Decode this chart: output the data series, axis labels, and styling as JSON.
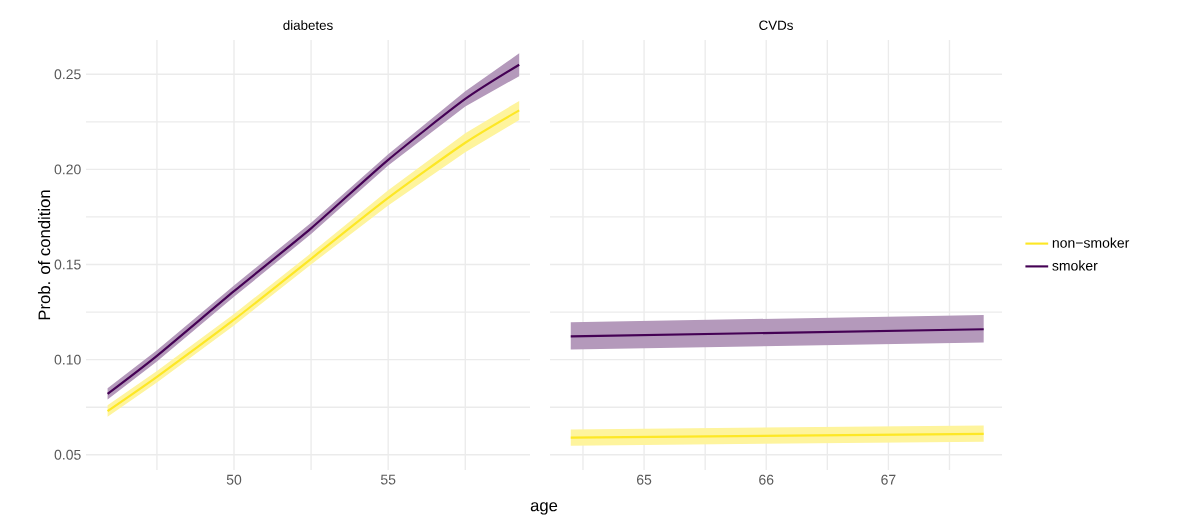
{
  "chart_data": [
    {
      "type": "line",
      "title": "diabetes",
      "ylabel": "Prob. of condition",
      "xlabel": "age",
      "grid": true,
      "line_style": "solid",
      "tick_labels": true,
      "xlim": [
        45.2,
        59.6
      ],
      "xticks": [
        {
          "value": 47.5,
          "label": null
        },
        50,
        {
          "value": 52.5,
          "label": null
        },
        55,
        {
          "value": 57.5,
          "label": null
        }
      ],
      "ylim": [
        0.042,
        0.268
      ],
      "yticks": [
        0.05,
        {
          "value": 0.075,
          "label": null
        },
        {
          "value": 0.1,
          "label": "0.10"
        },
        {
          "value": 0.125,
          "label": null
        },
        0.15,
        {
          "value": 0.175,
          "label": null
        },
        {
          "value": 0.2,
          "label": "0.20"
        },
        {
          "value": 0.225,
          "label": null
        },
        0.25
      ],
      "x": [
        45.9,
        47.5,
        50,
        52.5,
        55,
        57.5,
        59.25
      ],
      "series": [
        {
          "color": "#fde725",
          "values": [
            0.073,
            0.091,
            0.121,
            0.153,
            0.185,
            0.214,
            0.231
          ],
          "lower": [
            0.07,
            0.088,
            0.118,
            0.15,
            0.181,
            0.209,
            0.226
          ],
          "upper": [
            0.076,
            0.094,
            0.124,
            0.156,
            0.189,
            0.219,
            0.236
          ]
        },
        {
          "color": "#440154",
          "values": [
            0.082,
            0.102,
            0.136,
            0.169,
            0.205,
            0.237,
            0.255
          ],
          "lower": [
            0.079,
            0.099,
            0.133,
            0.166,
            0.202,
            0.233,
            0.249
          ],
          "upper": [
            0.085,
            0.105,
            0.139,
            0.172,
            0.208,
            0.241,
            0.261
          ]
        }
      ]
    },
    {
      "type": "line",
      "title": "CVDs",
      "grid": true,
      "line_style": "solid",
      "legend": "right",
      "tick_labels": "x",
      "xlim": [
        64.23,
        67.93
      ],
      "xticks": [
        {
          "value": 64.5,
          "label": null
        },
        65,
        {
          "value": 65.5,
          "label": null
        },
        66,
        {
          "value": 66.5,
          "label": null
        },
        67,
        {
          "value": 67.5,
          "label": null
        }
      ],
      "ylim": [
        0.042,
        0.268
      ],
      "yticks": [
        0.05,
        0.075,
        0.1,
        0.125,
        0.15,
        0.175,
        0.2,
        0.225,
        0.25
      ],
      "x": [
        64.4,
        67.78
      ],
      "series": [
        {
          "name": "non−smoker",
          "color": "#fde725",
          "values": [
            0.059,
            0.061
          ],
          "lower": [
            0.0548,
            0.0569
          ],
          "upper": [
            0.0633,
            0.0654
          ]
        },
        {
          "name": "smoker",
          "color": "#440154",
          "values": [
            0.1122,
            0.116
          ],
          "lower": [
            0.1053,
            0.109
          ],
          "upper": [
            0.1197,
            0.1234
          ]
        }
      ]
    }
  ]
}
